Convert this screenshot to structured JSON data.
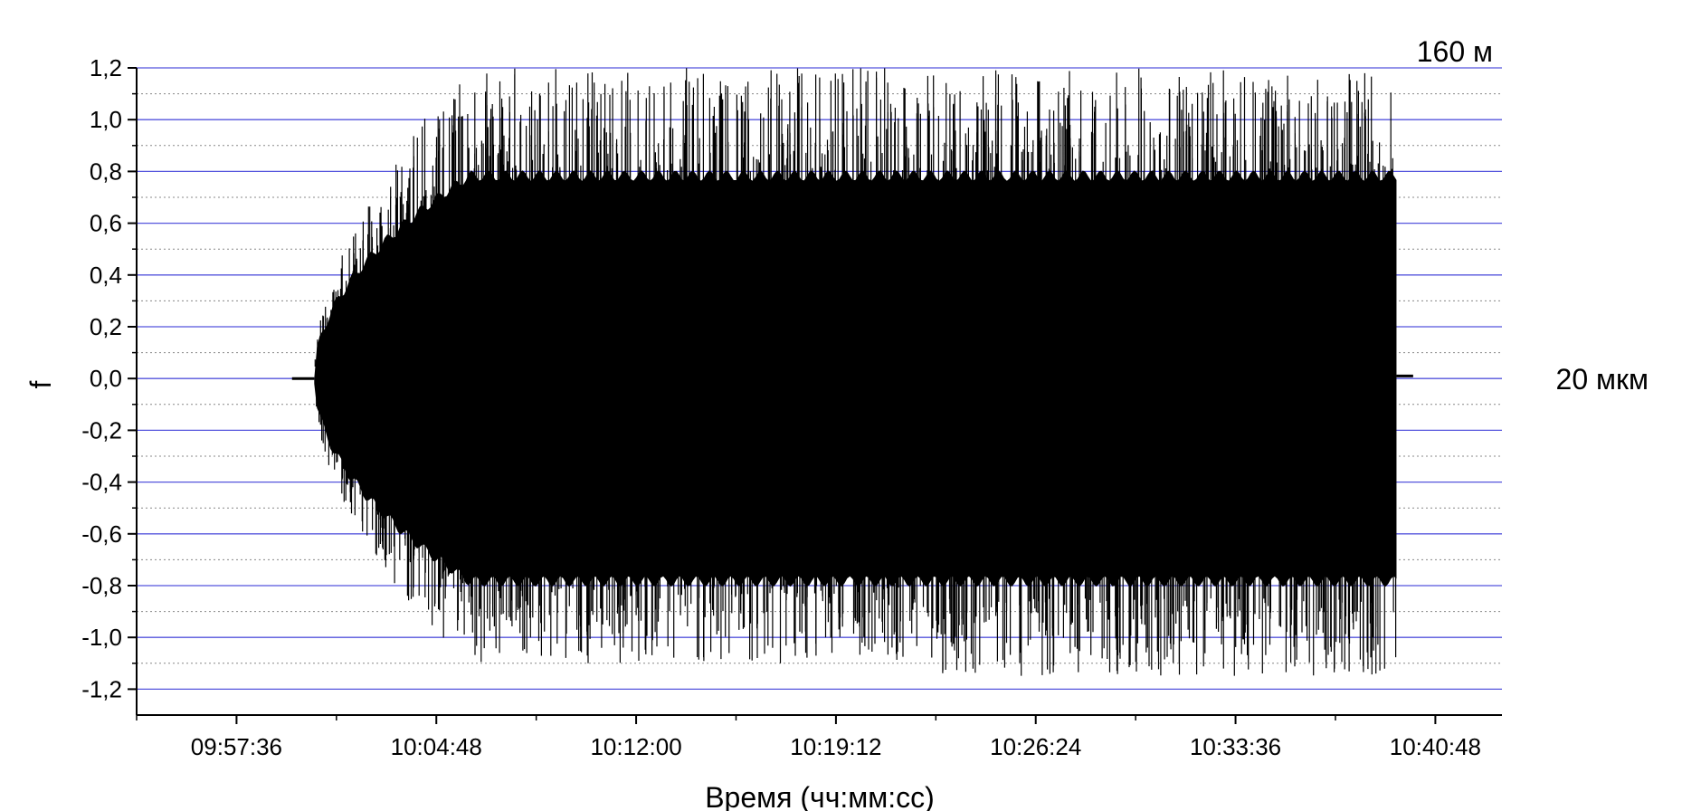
{
  "chart_data": {
    "type": "scatter",
    "title": "",
    "xlabel": "Время (чч:мм:сс)",
    "ylabel": "f",
    "xlim": [
      "09:54:00",
      "10:43:12"
    ],
    "ylim": [
      -1.3,
      1.2
    ],
    "x_tick_labels": [
      "09:57:36",
      "10:04:48",
      "10:12:00",
      "10:19:12",
      "10:26:24",
      "10:33:36",
      "10:40:48"
    ],
    "y_tick_labels": [
      "1,2",
      "1,0",
      "0,8",
      "0,6",
      "0,4",
      "0,2",
      "0,0",
      "-0,2",
      "-0,4",
      "-0,6",
      "-0,8",
      "-1,0",
      "-1,2"
    ],
    "y_ticks": [
      1.2,
      1.0,
      0.8,
      0.6,
      0.4,
      0.2,
      0.0,
      -0.2,
      -0.4,
      -0.6,
      -0.8,
      -1.0,
      -1.2
    ],
    "grid": {
      "major_color": "#5555dd",
      "minor_color": "#888888",
      "major_style": "solid",
      "minor_style": "dotted"
    },
    "annotations": [
      "160 м",
      "20 мкм"
    ],
    "signal": {
      "baseline_start": "09:59:36",
      "oscillation_start": "10:00:24",
      "ramp_end": "10:06:00",
      "oscillation_end": "10:39:24",
      "baseline_end": "10:40:00",
      "rms_band": [
        -0.8,
        0.8
      ],
      "peak_range": [
        -1.1,
        1.2
      ]
    },
    "series_color": "#000000"
  }
}
